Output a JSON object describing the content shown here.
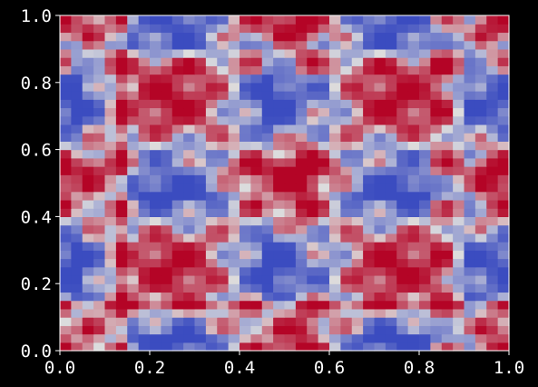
{
  "chart_data": {
    "type": "heatmap",
    "title": "",
    "xlabel": "",
    "ylabel": "",
    "xlim": [
      0.0,
      1.0
    ],
    "ylim": [
      0.0,
      1.0
    ],
    "x_ticks": [
      0.0,
      0.2,
      0.4,
      0.6,
      0.8,
      1.0
    ],
    "x_tick_labels": [
      "0.0",
      "0.2",
      "0.4",
      "0.6",
      "0.8",
      "1.0"
    ],
    "y_ticks": [
      0.0,
      0.2,
      0.4,
      0.6,
      0.8,
      1.0
    ],
    "y_tick_labels": [
      "0.0",
      "0.2",
      "0.4",
      "0.6",
      "0.8",
      "1.0"
    ],
    "grid": false,
    "colormap": "coolwarm",
    "colormap_stops": [
      "#3b4cc0",
      "#dddddd",
      "#b40426"
    ],
    "value_range": [
      -1.0,
      1.0
    ],
    "cells": [
      40,
      40
    ],
    "field": "approximate symmetric stripe pattern; value(x,y) = sign(a)*|a|^0.55, a = cos(4*pi*x)*cos(4*pi*y) + 0.6*cos(14*pi*x)*cos(14*pi*y) + 0.9*sum of red stripes - 0.5*sum of blue stripes",
    "red_stripes_x": [
      0.13,
      0.55,
      0.85
    ],
    "red_stripes_y": [
      0.13,
      0.55,
      0.85
    ],
    "blue_stripes_x": [
      0.03,
      0.47,
      0.92
    ],
    "blue_stripes_y": [
      0.03,
      0.47,
      0.92
    ],
    "background": "#000000",
    "text_color": "#ffffff"
  }
}
